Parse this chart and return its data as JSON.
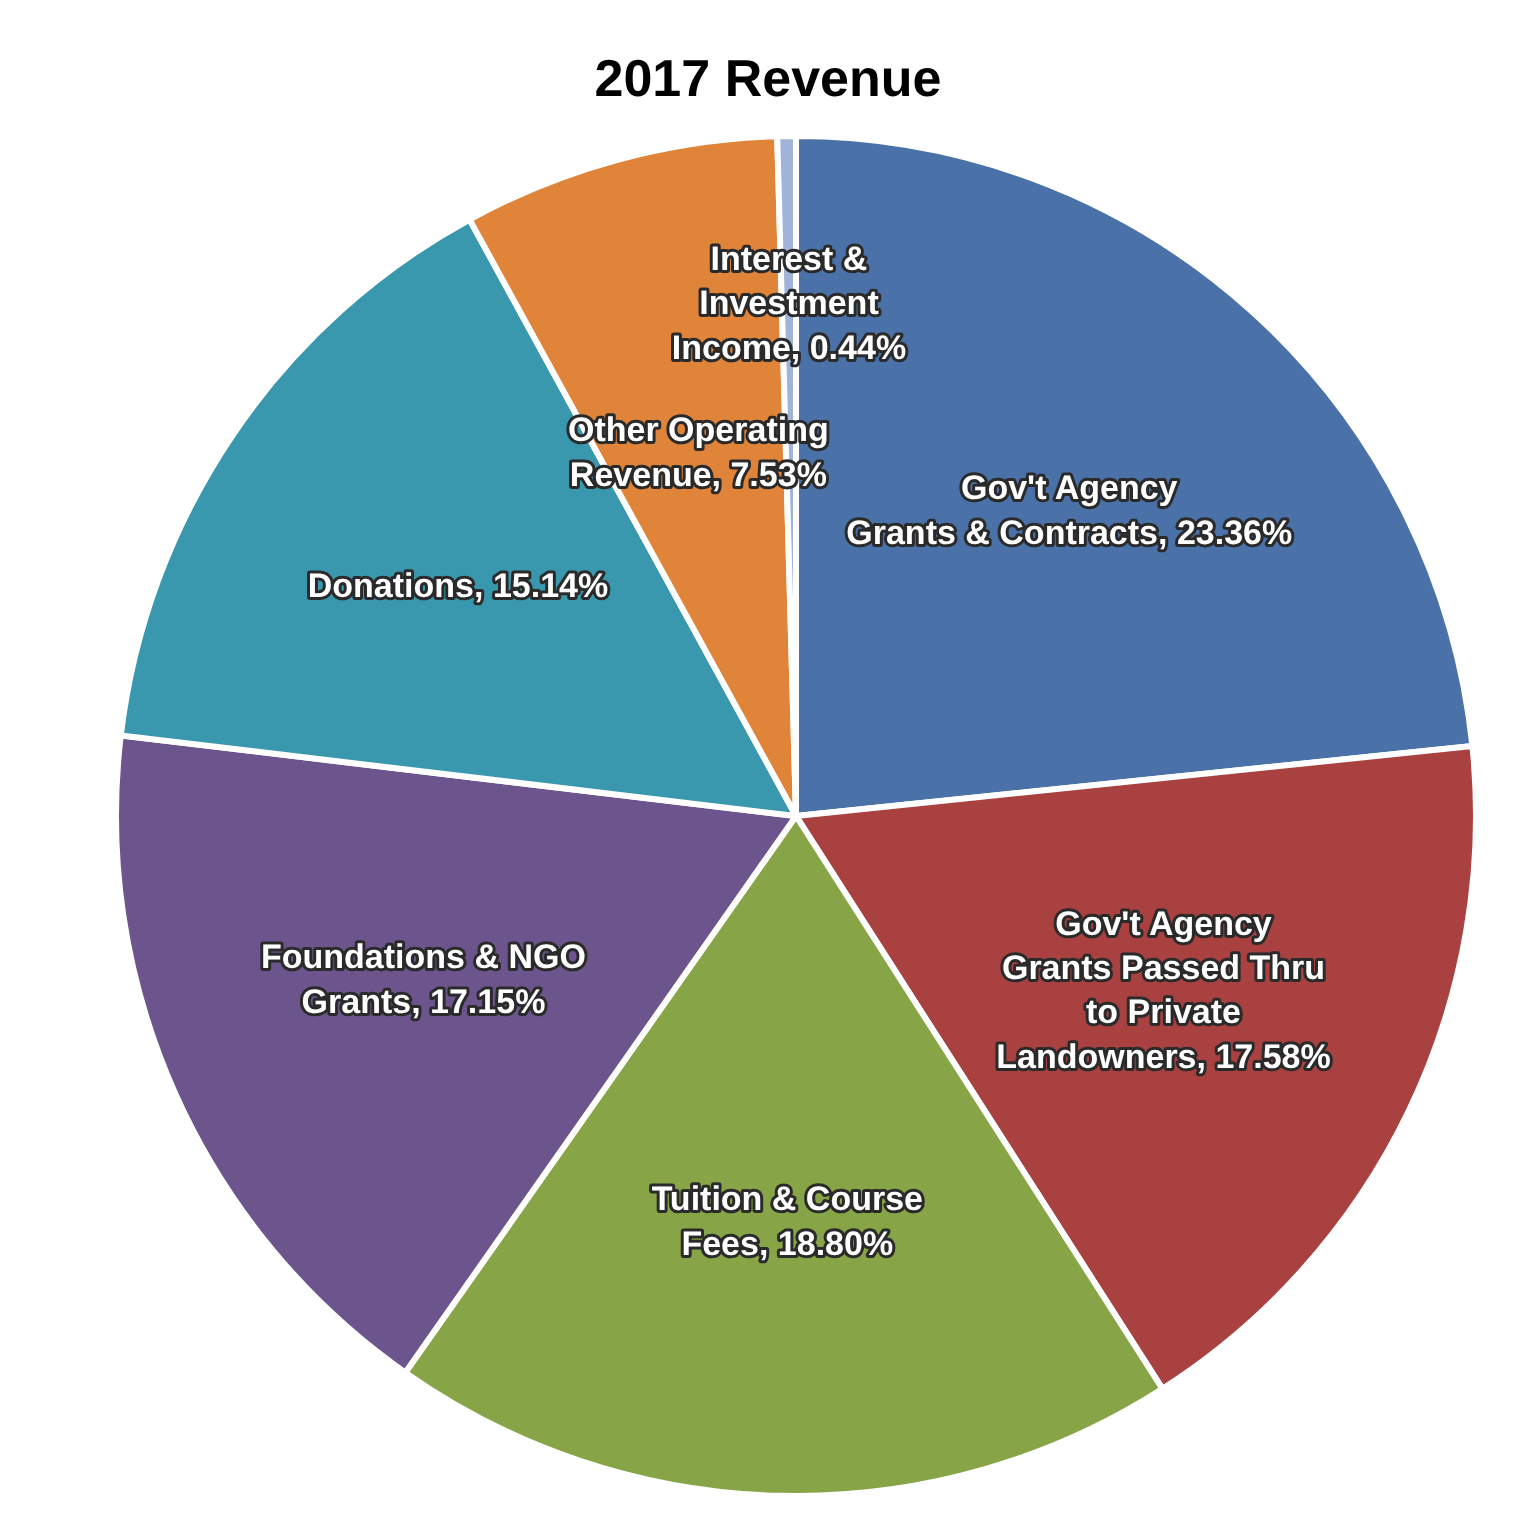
{
  "chart_data": {
    "type": "pie",
    "title": "2017 Revenue",
    "categories": [
      "Gov't Agency Grants & Contracts",
      "Gov't Agency Grants Passed Thru to Private Landowners",
      "Tuition & Course Fees",
      "Foundations & NGO Grants",
      "Donations",
      "Other Operating Revenue",
      "Interest & Investment Income"
    ],
    "values": [
      23.36,
      17.58,
      18.8,
      17.15,
      15.14,
      7.53,
      0.44
    ],
    "value_labels": [
      "23.36%",
      "17.58%",
      "18.80%",
      "17.15%",
      "15.14%",
      "7.53%",
      "0.44%"
    ],
    "colors": [
      "#4a72a8",
      "#a8413f",
      "#87a546",
      "#6c558c",
      "#3a98ae",
      "#e0843a",
      "#9fb4d8"
    ],
    "legend": false
  }
}
